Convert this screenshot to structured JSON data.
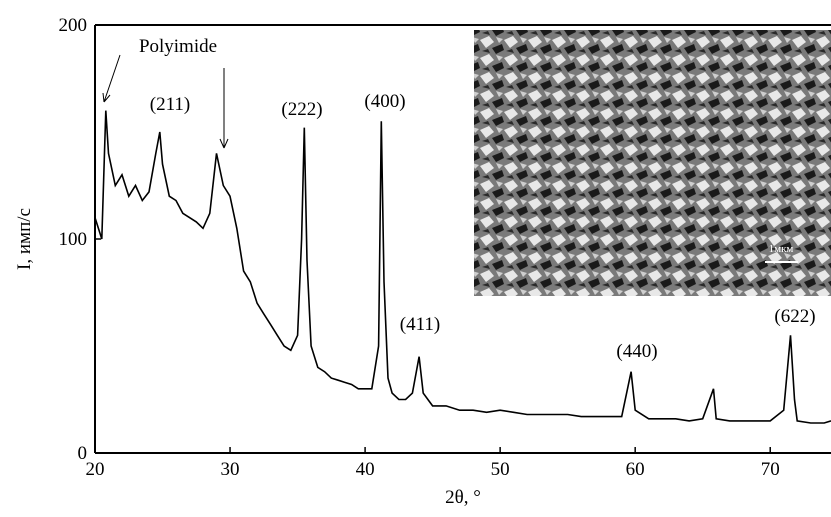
{
  "chart_data": {
    "type": "line",
    "y_label": "I, имп/с",
    "x_label": "2θ, °",
    "annotations": [
      "Polyimide",
      "(211)",
      "(222)",
      "(400)",
      "(411)",
      "(440)",
      "(622)"
    ],
    "inset_scale_label": "1мкм",
    "xlim": [
      20,
      74.5
    ],
    "xticks": [
      20,
      30,
      40,
      50,
      60,
      70
    ],
    "ylim": [
      0,
      200
    ],
    "yticks": [
      0,
      100,
      200
    ],
    "series": [
      {
        "color": "#000000",
        "x": [
          20,
          20.5,
          20.8,
          21,
          21.5,
          22,
          22.5,
          23,
          23.5,
          24,
          24.5,
          24.8,
          25,
          25.5,
          26,
          26.5,
          27,
          27.5,
          28,
          28.5,
          29,
          29.5,
          30,
          30.5,
          31,
          31.5,
          32,
          32.5,
          33,
          33.5,
          34,
          34.5,
          35,
          35.3,
          35.5,
          35.7,
          36,
          36.5,
          37,
          37.5,
          38,
          38.5,
          39,
          39.5,
          40,
          40.5,
          41,
          41.2,
          41.4,
          41.7,
          42,
          42.5,
          43,
          43.5,
          44,
          44.3,
          45,
          46,
          47,
          48,
          49,
          50,
          51,
          52,
          53,
          54,
          55,
          56,
          57,
          58,
          59,
          59.7,
          60,
          61,
          62,
          63,
          64,
          65,
          65.8,
          66,
          67,
          68,
          69,
          70,
          71,
          71.5,
          71.8,
          72,
          73,
          74,
          74.5
        ],
        "values": [
          110,
          100,
          160,
          140,
          125,
          130,
          120,
          125,
          118,
          122,
          140,
          150,
          135,
          120,
          118,
          112,
          110,
          108,
          105,
          112,
          140,
          125,
          120,
          105,
          85,
          80,
          70,
          65,
          60,
          55,
          50,
          48,
          55,
          100,
          152,
          90,
          50,
          40,
          38,
          35,
          34,
          33,
          32,
          30,
          30,
          30,
          50,
          155,
          80,
          35,
          28,
          25,
          25,
          28,
          45,
          28,
          22,
          22,
          20,
          20,
          19,
          20,
          19,
          18,
          18,
          18,
          18,
          17,
          17,
          17,
          17,
          38,
          20,
          16,
          16,
          16,
          15,
          16,
          30,
          16,
          15,
          15,
          15,
          15,
          20,
          55,
          25,
          15,
          14,
          14,
          15
        ]
      }
    ]
  }
}
